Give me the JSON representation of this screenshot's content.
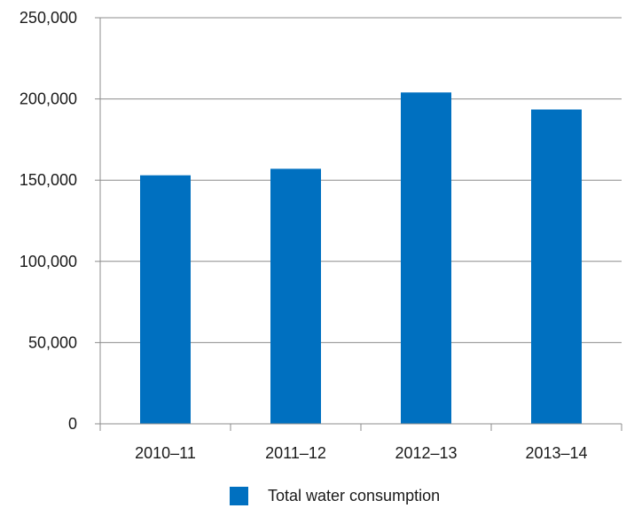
{
  "chart_data": {
    "type": "bar",
    "categories": [
      "2010–11",
      "2011–12",
      "2012–13",
      "2013–14"
    ],
    "series": [
      {
        "name": "Total water consumption",
        "values": [
          153000,
          157000,
          204000,
          193500
        ]
      }
    ],
    "yticks": [
      "0",
      "50,000",
      "100,000",
      "150,000",
      "200,000",
      "250,000"
    ],
    "ylim": [
      0,
      250000
    ],
    "grid": true,
    "legend": "bottom-center",
    "bar_color": "#0070c0"
  }
}
